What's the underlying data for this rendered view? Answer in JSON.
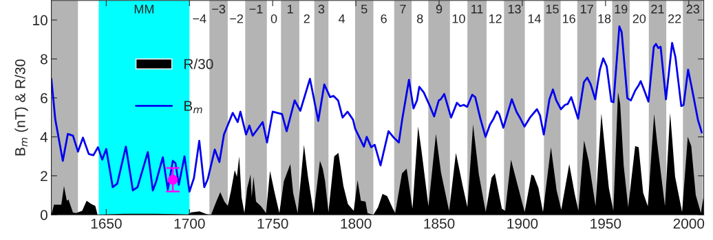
{
  "chart_data": {
    "type": "line",
    "ylabel": "B$_{m}$ (nT) & R/30",
    "xlim": [
      1617,
      2009
    ],
    "xticks": [
      1650,
      1700,
      1750,
      1800,
      1850,
      1900,
      1950,
      2000
    ],
    "ylim": [
      0,
      11
    ],
    "yticks": [
      0,
      2,
      4,
      6,
      8,
      10
    ],
    "grid": false,
    "legend": "left",
    "series": [
      {
        "name": "R/30",
        "type": "area",
        "color": "#000000",
        "x": [
          1617,
          1618.6,
          1623,
          1624.6,
          1626.3,
          1627.3,
          1630,
          1632,
          1633.4,
          1635.5,
          1638.2,
          1641,
          1643.4,
          1644.8,
          1660,
          1680,
          1699,
          1701,
          1706,
          1710,
          1713,
          1716.1,
          1718.5,
          1721,
          1723,
          1725,
          1727.2,
          1728.5,
          1729.9,
          1731.3,
          1733,
          1734.7,
          1736.7,
          1737.4,
          1738.5,
          1740,
          1743,
          1746,
          1748.4,
          1751.2,
          1754,
          1756.7,
          1760.6,
          1762.3,
          1765,
          1768.8,
          1771.2,
          1774.6,
          1778.4,
          1780.1,
          1781.5,
          1783.5,
          1787,
          1789.5,
          1792.5,
          1795.2,
          1798.7,
          1801,
          1803,
          1805.8,
          1807,
          1810.5,
          1813.3,
          1816,
          1818.8,
          1822.2,
          1823.6,
          1827.7,
          1830.5,
          1834,
          1837.4,
          1839.4,
          1843.6,
          1848.1,
          1851.1,
          1856,
          1860.1,
          1864.2,
          1867,
          1870.4,
          1873.9,
          1878,
          1881.5,
          1883.5,
          1887.7,
          1889.7,
          1893.2,
          1897.3,
          1901.4,
          1905.5,
          1906.9,
          1909.7,
          1912.4,
          1917.2,
          1920.6,
          1923.4,
          1928.2,
          1931.6,
          1933.7,
          1937.1,
          1939.9,
          1944,
          1947.5,
          1952,
          1954.7,
          1957.5,
          1958.8,
          1960.9,
          1963.6,
          1967.8,
          1969.9,
          1972.6,
          1975.4,
          1979.2,
          1981,
          1985.7,
          1988.8,
          1989.8,
          1991.8,
          1996,
          1999.4,
          2001.5,
          2004.2,
          2007.3,
          2009
        ],
        "values": [
          0,
          0.52,
          0.52,
          1.48,
          0.72,
          0.78,
          0.11,
          0.09,
          0.14,
          0.2,
          0.72,
          0.55,
          0.46,
          0,
          0.05,
          0.05,
          0.02,
          0.12,
          0.18,
          0.04,
          0,
          0.68,
          1.16,
          0.68,
          0.46,
          1.26,
          2.3,
          1.95,
          3.0,
          0.9,
          0.09,
          1.37,
          2.07,
          0.9,
          1.95,
          0.68,
          0.44,
          0.09,
          2.25,
          1.13,
          0.09,
          1.72,
          2.6,
          1.13,
          0.09,
          3.59,
          1.95,
          0.09,
          2.77,
          2.37,
          1.72,
          0.14,
          3.0,
          3.18,
          1.48,
          0.55,
          0.2,
          1.78,
          0.72,
          0.68,
          0.09,
          0,
          0.39,
          1.07,
          0.96,
          0.32,
          0.09,
          2.13,
          2.37,
          0.32,
          4.53,
          3.3,
          0.44,
          4.15,
          2.19,
          0.2,
          3.18,
          1.48,
          0.39,
          4.64,
          2.07,
          0.14,
          1.9,
          2.13,
          0.32,
          0.2,
          2.83,
          1.48,
          0.14,
          2.07,
          2.01,
          1.37,
          0.14,
          3.47,
          1.26,
          0.26,
          2.6,
          1.02,
          0.2,
          3.82,
          2.77,
          0.44,
          5.2,
          1.37,
          0.2,
          6.3,
          5.69,
          2.54,
          0.39,
          3.53,
          3.47,
          1.13,
          0.44,
          5.17,
          3.71,
          0.44,
          5.23,
          4.17,
          1.95,
          0.14,
          4.0,
          3.53,
          1.02,
          0.09,
          1.0
        ]
      },
      {
        "name": "B$_{m}$",
        "color": "#0000ee",
        "x": [
          1617,
          1619.4,
          1623.9,
          1626.9,
          1630,
          1633,
          1636,
          1639.5,
          1642.3,
          1645,
          1647.6,
          1650,
          1653.9,
          1656.6,
          1661.8,
          1666,
          1668.8,
          1675,
          1678,
          1679.8,
          1684,
          1687,
          1690,
          1691.6,
          1693.6,
          1697,
          1700,
          1702.7,
          1705.9,
          1708.9,
          1711,
          1715.2,
          1718,
          1720.7,
          1726,
          1729,
          1730.6,
          1734,
          1736,
          1738,
          1741,
          1744,
          1746.6,
          1750,
          1755.6,
          1758.4,
          1763.2,
          1766.6,
          1772.4,
          1777.4,
          1781,
          1784.5,
          1786.6,
          1789.3,
          1792,
          1795,
          1798.3,
          1799.6,
          1802.3,
          1804.8,
          1806.5,
          1809.2,
          1811.3,
          1814.8,
          1819.6,
          1823,
          1825.8,
          1827.8,
          1831.9,
          1834.6,
          1836.7,
          1838.1,
          1840.8,
          1843.9,
          1847,
          1849.8,
          1851,
          1853.1,
          1857.2,
          1860.7,
          1862.7,
          1864.8,
          1866.8,
          1869.9,
          1871.7,
          1874.8,
          1877.9,
          1880.6,
          1882.7,
          1884.7,
          1886.1,
          1888.6,
          1893.7,
          1896.5,
          1898.5,
          1901.3,
          1904.6,
          1908.8,
          1910.6,
          1912.9,
          1916.3,
          1918.4,
          1920.4,
          1923.2,
          1925.6,
          1927.3,
          1929.4,
          1933.5,
          1937,
          1939,
          1941.1,
          1943.8,
          1946.6,
          1948.6,
          1950.7,
          1953.5,
          1954.8,
          1958.3,
          1959.7,
          1963.1,
          1965.2,
          1967.9,
          1970,
          1971.1,
          1973,
          1975.8,
          1979,
          1980.3,
          1981.7,
          1983.1,
          1986.3,
          1990,
          1992,
          1995.5,
          1996.9,
          1999.6,
          2001.7,
          2005.5,
          2007.8
        ],
        "values": [
          6.98,
          4.88,
          2.77,
          4.15,
          4.06,
          3.24,
          3.96,
          3.12,
          3.06,
          3.47,
          2.83,
          3.38,
          1.42,
          1.6,
          3.5,
          1.25,
          1.42,
          3.22,
          1.25,
          1.66,
          2.95,
          1.3,
          2.77,
          2.65,
          1.54,
          3.0,
          1.19,
          1.89,
          3.8,
          1.42,
          1.83,
          3.35,
          2.71,
          4.12,
          5.23,
          4.76,
          5.29,
          4.12,
          4.58,
          4.06,
          4.41,
          4.76,
          3.71,
          5.29,
          5.17,
          4.29,
          5.87,
          5.34,
          6.98,
          4.82,
          6.69,
          6.04,
          6.1,
          5.87,
          4.99,
          5.29,
          4.88,
          4.41,
          3.94,
          3.5,
          4.0,
          3.47,
          3.59,
          2.54,
          4.29,
          3.94,
          3.71,
          4.88,
          6.93,
          5.46,
          5.87,
          6.57,
          6.28,
          5.69,
          5.05,
          5.87,
          5.93,
          6.2,
          4.99,
          5.75,
          5.58,
          5.64,
          5.54,
          6.16,
          6.04,
          4.93,
          4.0,
          4.64,
          4.93,
          5.31,
          5.17,
          4.47,
          5.93,
          5.29,
          4.99,
          4.53,
          4.99,
          5.42,
          5.11,
          4.12,
          5.93,
          6.43,
          5.87,
          5.42,
          5.64,
          5.69,
          6.04,
          4.93,
          6.81,
          7.04,
          6.69,
          5.93,
          7.45,
          8.03,
          7.62,
          5.81,
          5.78,
          9.67,
          9.38,
          5.99,
          5.87,
          6.39,
          6.66,
          6.86,
          6.45,
          5.81,
          8.62,
          8.77,
          8.56,
          8.62,
          5.93,
          8.82,
          8.09,
          5.58,
          5.64,
          7.45,
          6.57,
          4.88,
          4.23
        ]
      },
      {
        "type": "scatter",
        "color": "#ff00ff",
        "marker": "circle",
        "x": [
          1690
        ],
        "values": [
          1.8
        ],
        "errors": [
          [
            1.2,
            2.4
          ]
        ]
      }
    ],
    "bands": [
      {
        "axis": "x",
        "from": 1617,
        "to": 1633,
        "color": "#b4b4b4"
      },
      {
        "axis": "x",
        "from": 1645.5,
        "to": 1700,
        "color": "#00ffff",
        "label": "MM"
      },
      {
        "axis": "x",
        "from": 1712,
        "to": 1723,
        "color": "#b4b4b4",
        "label": "−3"
      },
      {
        "axis": "x",
        "from": 1733.5,
        "to": 1746.5,
        "color": "#b4b4b4",
        "label": "−1"
      },
      {
        "axis": "x",
        "from": 1755,
        "to": 1766,
        "color": "#b4b4b4",
        "label": "1"
      },
      {
        "axis": "x",
        "from": 1775,
        "to": 1783.5,
        "color": "#b4b4b4",
        "label": "3"
      },
      {
        "axis": "x",
        "from": 1799.5,
        "to": 1810.5,
        "color": "#b4b4b4",
        "label": "5"
      },
      {
        "axis": "x",
        "from": 1823,
        "to": 1833.5,
        "color": "#b4b4b4",
        "label": "7"
      },
      {
        "axis": "x",
        "from": 1843.5,
        "to": 1856.5,
        "color": "#b4b4b4",
        "label": "9"
      },
      {
        "axis": "x",
        "from": 1867,
        "to": 1878.5,
        "color": "#b4b4b4",
        "label": "11"
      },
      {
        "axis": "x",
        "from": 1889,
        "to": 1901.5,
        "color": "#b4b4b4",
        "label": "13"
      },
      {
        "axis": "x",
        "from": 1913,
        "to": 1923,
        "color": "#b4b4b4",
        "label": "15"
      },
      {
        "axis": "x",
        "from": 1933,
        "to": 1944.5,
        "color": "#b4b4b4",
        "label": "17"
      },
      {
        "axis": "x",
        "from": 1954,
        "to": 1964.5,
        "color": "#b4b4b4",
        "label": "19"
      },
      {
        "axis": "x",
        "from": 1976,
        "to": 1986.5,
        "color": "#b4b4b4",
        "label": "21"
      },
      {
        "axis": "x",
        "from": 1996.5,
        "to": 2008.5,
        "color": "#b4b4b4",
        "label": "23"
      }
    ],
    "annotations": [
      "−4",
      "−2",
      "0",
      "2",
      "4",
      "6",
      "8",
      "10",
      "12",
      "14",
      "16",
      "18",
      "20",
      "22"
    ]
  }
}
